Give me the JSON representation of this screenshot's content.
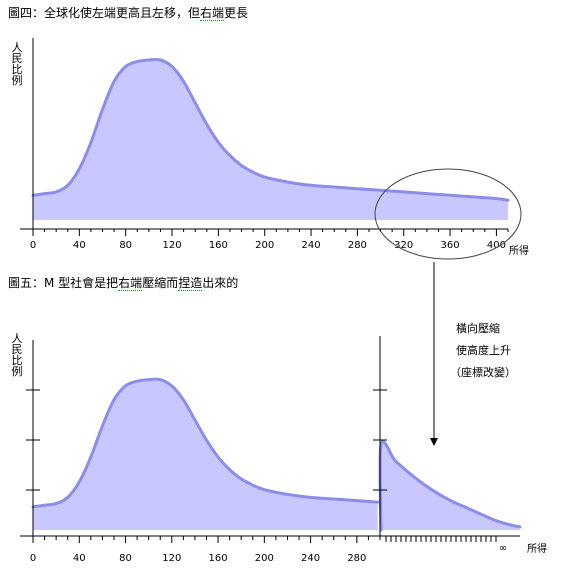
{
  "figure4": {
    "caption_prefix": "圖四：全球化使左端更高且左移，但",
    "caption_underlined": "右端",
    "caption_suffix": "更長",
    "ylabel": "人民比例",
    "xlabel": "所得"
  },
  "figure5": {
    "caption_prefix": "圖五：M 型社會是把",
    "caption_underlined": "右端",
    "caption_middle": "壓縮而",
    "caption_underlined2": "捏造",
    "caption_suffix": "出來的",
    "ylabel": "人民比例",
    "xlabel": "所得"
  },
  "annotation": {
    "line1": "橫向壓縮",
    "line2": "使高度上升",
    "line3": "（座標改變）"
  },
  "colors": {
    "fill": "#c8c8ff",
    "stroke": "#8c8ceb",
    "ellipse": "#444444"
  },
  "chart_data": [
    {
      "type": "area",
      "xlabel": "所得",
      "ylabel": "人民比例",
      "x_ticks": [
        0,
        40,
        80,
        120,
        160,
        200,
        240,
        280,
        320,
        360,
        400
      ],
      "xlim": [
        0,
        410
      ],
      "ylim": [
        0,
        1
      ],
      "series": [
        {
          "x": [
            0,
            10,
            20,
            30,
            40,
            50,
            60,
            70,
            80,
            90,
            100,
            110,
            120,
            130,
            140,
            150,
            160,
            170,
            180,
            190,
            200,
            220,
            240,
            260,
            280,
            300,
            320,
            340,
            360,
            380,
            400,
            410
          ],
          "values": [
            0.15,
            0.16,
            0.17,
            0.21,
            0.31,
            0.47,
            0.67,
            0.84,
            0.93,
            0.96,
            0.97,
            0.97,
            0.93,
            0.84,
            0.71,
            0.58,
            0.47,
            0.39,
            0.33,
            0.29,
            0.26,
            0.23,
            0.21,
            0.2,
            0.19,
            0.18,
            0.17,
            0.16,
            0.15,
            0.14,
            0.13,
            0.12
          ]
        }
      ],
      "highlight": "right tail (300–410) circled"
    },
    {
      "type": "area",
      "xlabel": "所得",
      "ylabel": "人民比例",
      "x_ticks": [
        "0",
        "40",
        "80",
        "120",
        "160",
        "200",
        "240",
        "280",
        "∞"
      ],
      "xlim": [
        0,
        300
      ],
      "ylim": [
        0,
        1.6
      ],
      "series": [
        {
          "x": [
            0,
            10,
            20,
            30,
            40,
            50,
            60,
            70,
            80,
            90,
            100,
            110,
            120,
            130,
            140,
            150,
            160,
            170,
            180,
            190,
            200,
            220,
            240,
            260,
            280,
            298
          ],
          "values": [
            0.15,
            0.16,
            0.17,
            0.21,
            0.31,
            0.47,
            0.67,
            0.84,
            0.93,
            0.96,
            0.97,
            0.97,
            0.93,
            0.84,
            0.71,
            0.58,
            0.47,
            0.39,
            0.33,
            0.29,
            0.26,
            0.23,
            0.21,
            0.2,
            0.19,
            0.18
          ]
        },
        {
          "x": [
            300,
            310,
            320,
            330,
            340,
            350,
            360,
            370,
            380,
            390,
            400
          ],
          "values": [
            0.55,
            0.45,
            0.37,
            0.3,
            0.24,
            0.19,
            0.15,
            0.11,
            0.07,
            0.04,
            0.02
          ]
        }
      ],
      "note": "right tail 300–∞ compressed horizontally"
    }
  ]
}
